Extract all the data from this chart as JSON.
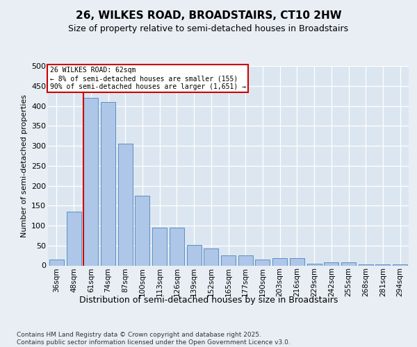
{
  "title": "26, WILKES ROAD, BROADSTAIRS, CT10 2HW",
  "subtitle": "Size of property relative to semi-detached houses in Broadstairs",
  "xlabel": "Distribution of semi-detached houses by size in Broadstairs",
  "ylabel": "Number of semi-detached properties",
  "categories": [
    "36sqm",
    "48sqm",
    "61sqm",
    "74sqm",
    "87sqm",
    "100sqm",
    "113sqm",
    "126sqm",
    "139sqm",
    "152sqm",
    "165sqm",
    "177sqm",
    "190sqm",
    "203sqm",
    "216sqm",
    "229sqm",
    "242sqm",
    "255sqm",
    "268sqm",
    "281sqm",
    "294sqm"
  ],
  "values": [
    14,
    135,
    420,
    410,
    305,
    175,
    95,
    95,
    52,
    42,
    25,
    25,
    15,
    18,
    18,
    5,
    7,
    7,
    3,
    3,
    3
  ],
  "bar_color": "#aec6e8",
  "bar_edge_color": "#5a8fc2",
  "highlight_index": 2,
  "highlight_color": "#cc0000",
  "annotation_title": "26 WILKES ROAD: 62sqm",
  "annotation_line1": "← 8% of semi-detached houses are smaller (155)",
  "annotation_line2": "90% of semi-detached houses are larger (1,651) →",
  "ylim": [
    0,
    500
  ],
  "yticks": [
    0,
    50,
    100,
    150,
    200,
    250,
    300,
    350,
    400,
    450,
    500
  ],
  "footer": "Contains HM Land Registry data © Crown copyright and database right 2025.\nContains public sector information licensed under the Open Government Licence v3.0.",
  "bg_color": "#e8eef4",
  "plot_bg_color": "#dce6f0",
  "title_fontsize": 11,
  "subtitle_fontsize": 9,
  "ylabel_fontsize": 8,
  "xlabel_fontsize": 9,
  "tick_fontsize": 7.5,
  "ytick_fontsize": 8,
  "footer_fontsize": 6.5
}
